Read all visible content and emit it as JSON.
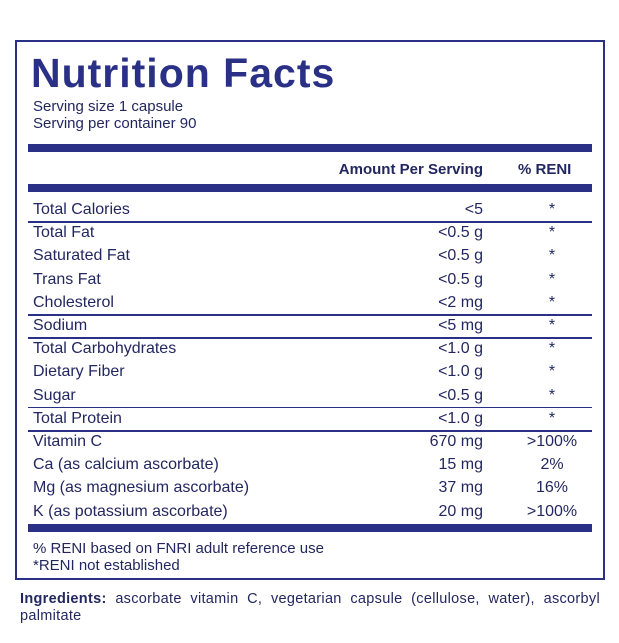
{
  "title": "Nutrition Facts",
  "serving": [
    "Serving size  1 capsule",
    "Serving per container  90"
  ],
  "header": {
    "amount": "Amount Per Serving",
    "reni": "% RENI"
  },
  "sections": [
    [
      [
        "Total Calories",
        "<5",
        "*"
      ]
    ],
    [
      [
        "Total Fat",
        "<0.5 g",
        "*"
      ],
      [
        "Saturated Fat",
        "<0.5 g",
        "*"
      ],
      [
        "Trans Fat",
        "<0.5 g",
        "*"
      ],
      [
        "Cholesterol",
        "<2 mg",
        "*"
      ]
    ],
    [
      [
        "Sodium",
        "<5 mg",
        "*"
      ]
    ],
    [
      [
        "Total Carbohydrates",
        "<1.0 g",
        "*"
      ],
      [
        "Dietary Fiber",
        "<1.0 g",
        "*"
      ],
      [
        "Sugar",
        "<0.5 g",
        "*"
      ]
    ],
    [
      [
        "Total Protein",
        "<1.0 g",
        "*"
      ]
    ],
    [
      [
        "Vitamin C",
        "670 mg",
        ">100%"
      ],
      [
        "Ca (as calcium ascorbate)",
        "15 mg",
        "2%"
      ],
      [
        "Mg (as magnesium ascorbate)",
        "37 mg",
        "16%"
      ],
      [
        "K (as potassium ascorbate)",
        "20 mg",
        ">100%"
      ]
    ]
  ],
  "footnotes": [
    "% RENI based on FNRI adult reference use",
    "*RENI not established"
  ],
  "ingredients": {
    "label": "Ingredients:",
    "text": "ascorbate vitamin C, vegetarian capsule (cellulose, water), ascorbyl palmitate"
  }
}
